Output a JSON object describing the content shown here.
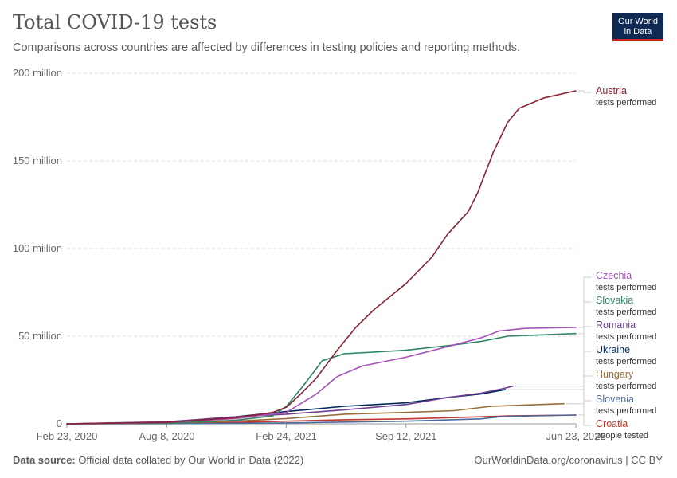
{
  "header": {
    "title": "Total COVID-19 tests",
    "subtitle": "Comparisons across countries are affected by differences in testing policies and reporting methods.",
    "logo_line1": "Our World",
    "logo_line2": "in Data"
  },
  "footer": {
    "source_label": "Data source:",
    "source_text": "Official data collated by Our World in Data (2022)",
    "right_text": "OurWorldinData.org/coronavirus | CC BY"
  },
  "chart_data": {
    "type": "line",
    "title": "Total COVID-19 tests",
    "subtitle": "Comparisons across countries are affected by differences in testing policies and reporting methods.",
    "xlabel": "",
    "ylabel": "",
    "x_type": "date",
    "xlim": [
      "2020-02-23",
      "2022-06-23"
    ],
    "ylim": [
      0,
      200000000
    ],
    "x_ticks": [
      {
        "date": "2020-02-23",
        "label": "Feb 23, 2020"
      },
      {
        "date": "2020-08-08",
        "label": "Aug 8, 2020"
      },
      {
        "date": "2021-02-24",
        "label": "Feb 24, 2021"
      },
      {
        "date": "2021-09-12",
        "label": "Sep 12, 2021"
      },
      {
        "date": "2022-06-23",
        "label": "Jun 23, 2022"
      }
    ],
    "y_ticks": [
      {
        "value": 0,
        "label": "0"
      },
      {
        "value": 50000000,
        "label": "50 million"
      },
      {
        "value": 100000000,
        "label": "100 million"
      },
      {
        "value": 150000000,
        "label": "150 million"
      },
      {
        "value": 200000000,
        "label": "200 million"
      }
    ],
    "grid": "horizontal dashed",
    "legend": "right, labels at line ends",
    "series": [
      {
        "name": "Austria",
        "note": "tests performed",
        "color": "#8b2332",
        "points": [
          [
            "2020-02-23",
            0
          ],
          [
            "2020-08-08",
            800000
          ],
          [
            "2020-12-01",
            3500000
          ],
          [
            "2021-02-01",
            6500000
          ],
          [
            "2021-02-24",
            9500000
          ],
          [
            "2021-03-20",
            17000000
          ],
          [
            "2021-04-15",
            26000000
          ],
          [
            "2021-05-20",
            42000000
          ],
          [
            "2021-06-20",
            55000000
          ],
          [
            "2021-07-20",
            65000000
          ],
          [
            "2021-09-12",
            80000000
          ],
          [
            "2021-10-25",
            95000000
          ],
          [
            "2021-11-20",
            108000000
          ],
          [
            "2021-12-25",
            121000000
          ],
          [
            "2022-01-10",
            132000000
          ],
          [
            "2022-02-05",
            155000000
          ],
          [
            "2022-03-01",
            172000000
          ],
          [
            "2022-03-20",
            180000000
          ],
          [
            "2022-05-01",
            186000000
          ],
          [
            "2022-06-23",
            190000000
          ]
        ]
      },
      {
        "name": "Czechia",
        "note": "tests performed",
        "color": "#a652ba",
        "points": [
          [
            "2020-02-23",
            0
          ],
          [
            "2020-08-08",
            700000
          ],
          [
            "2020-12-01",
            3000000
          ],
          [
            "2021-02-24",
            6500000
          ],
          [
            "2021-04-15",
            17000000
          ],
          [
            "2021-05-20",
            27000000
          ],
          [
            "2021-07-01",
            33000000
          ],
          [
            "2021-09-12",
            38000000
          ],
          [
            "2021-11-20",
            44000000
          ],
          [
            "2022-01-15",
            49000000
          ],
          [
            "2022-02-15",
            53000000
          ],
          [
            "2022-04-01",
            54500000
          ],
          [
            "2022-06-23",
            55000000
          ]
        ]
      },
      {
        "name": "Slovakia",
        "note": "tests performed",
        "color": "#2c8465",
        "points": [
          [
            "2020-02-23",
            0
          ],
          [
            "2020-08-08",
            300000
          ],
          [
            "2020-12-01",
            2000000
          ],
          [
            "2021-02-01",
            4500000
          ],
          [
            "2021-02-24",
            10000000
          ],
          [
            "2021-03-25",
            22000000
          ],
          [
            "2021-04-25",
            36000000
          ],
          [
            "2021-06-01",
            40000000
          ],
          [
            "2021-09-12",
            42000000
          ],
          [
            "2021-12-01",
            45000000
          ],
          [
            "2022-01-15",
            47000000
          ],
          [
            "2022-03-01",
            50000000
          ],
          [
            "2022-06-23",
            51500000
          ]
        ]
      },
      {
        "name": "Romania",
        "note": "tests performed",
        "color": "#6d3e91",
        "points": [
          [
            "2020-02-23",
            0
          ],
          [
            "2020-08-08",
            1200000
          ],
          [
            "2020-12-01",
            4000000
          ],
          [
            "2021-02-24",
            5500000
          ],
          [
            "2021-06-01",
            8000000
          ],
          [
            "2021-09-12",
            11000000
          ],
          [
            "2021-11-20",
            15000000
          ],
          [
            "2022-01-15",
            17500000
          ],
          [
            "2022-02-20",
            20000000
          ],
          [
            "2022-03-10",
            21500000
          ]
        ]
      },
      {
        "name": "Ukraine",
        "note": "tests performed",
        "color": "#00295b",
        "points": [
          [
            "2020-02-23",
            0
          ],
          [
            "2020-08-08",
            1000000
          ],
          [
            "2020-12-01",
            4000000
          ],
          [
            "2021-02-24",
            7000000
          ],
          [
            "2021-06-01",
            10000000
          ],
          [
            "2021-09-12",
            12000000
          ],
          [
            "2021-11-20",
            15000000
          ],
          [
            "2022-01-15",
            17000000
          ],
          [
            "2022-02-25",
            19500000
          ]
        ]
      },
      {
        "name": "Hungary",
        "note": "tests performed",
        "color": "#996d39",
        "points": [
          [
            "2020-02-23",
            0
          ],
          [
            "2020-08-08",
            300000
          ],
          [
            "2020-12-01",
            1500000
          ],
          [
            "2021-02-24",
            3000000
          ],
          [
            "2021-06-01",
            5500000
          ],
          [
            "2021-09-12",
            6500000
          ],
          [
            "2021-12-01",
            7500000
          ],
          [
            "2022-02-01",
            10000000
          ],
          [
            "2022-06-03",
            11500000
          ]
        ]
      },
      {
        "name": "Slovenia",
        "note": "tests performed",
        "color": "#4c6a9c",
        "points": [
          [
            "2020-02-23",
            0
          ],
          [
            "2020-08-08",
            100000
          ],
          [
            "2021-02-24",
            500000
          ],
          [
            "2021-09-12",
            1500000
          ],
          [
            "2022-01-15",
            2800000
          ],
          [
            "2022-02-20",
            4200000
          ],
          [
            "2022-06-23",
            5000000
          ]
        ]
      },
      {
        "name": "Croatia",
        "note": "people tested",
        "color": "#c0382b",
        "points": [
          [
            "2020-02-23",
            0
          ],
          [
            "2020-08-08",
            200000
          ],
          [
            "2020-12-01",
            800000
          ],
          [
            "2021-02-24",
            1500000
          ],
          [
            "2021-06-01",
            2300000
          ],
          [
            "2021-09-12",
            2800000
          ],
          [
            "2022-01-15",
            4000000
          ],
          [
            "2022-03-01",
            4500000
          ],
          [
            "2022-06-23",
            5000000
          ]
        ]
      }
    ]
  }
}
